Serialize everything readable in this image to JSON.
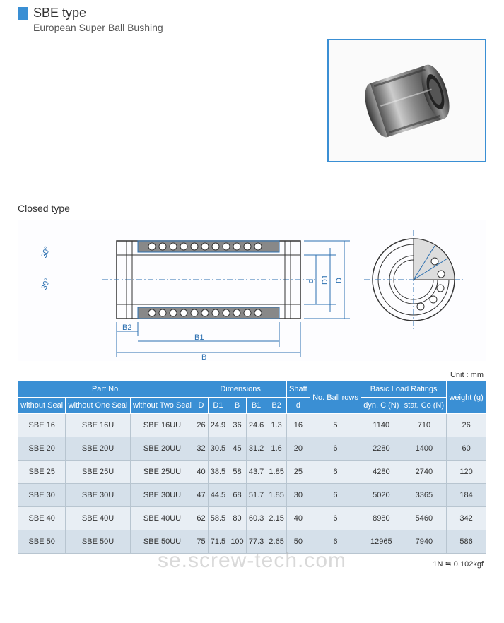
{
  "header": {
    "title": "SBE type",
    "subtitle": "European Super Ball Bushing",
    "section": "Closed type",
    "unit": "Unit : mm",
    "footer": "1N ≒ 0.102kgf",
    "watermark": "se.screw-tech.com"
  },
  "colors": {
    "accent": "#3a8fd4",
    "row_odd": "#e8eef4",
    "row_even": "#d5e0ea",
    "border": "#b8c5d0"
  },
  "drawing": {
    "dims": [
      "30°",
      "30°",
      "B2",
      "B1",
      "B",
      "d",
      "D1",
      "D"
    ],
    "stroke": "#2b6fb0",
    "hatch": "#555"
  },
  "table": {
    "header_groups": [
      {
        "label": "Part No.",
        "span": 3
      },
      {
        "label": "Dimensions",
        "span": 5
      },
      {
        "label": "Shaft",
        "span": 1
      },
      {
        "label": "No. Ball rows",
        "span": 1,
        "rowspan": 2
      },
      {
        "label": "Basic Load Ratings",
        "span": 2
      },
      {
        "label": "weight (g)",
        "span": 1,
        "rowspan": 2
      }
    ],
    "sub_headers": [
      "without Seal",
      "without One Seal",
      "without Two Seal",
      "D",
      "D1",
      "B",
      "B1",
      "B2",
      "d",
      "dyn. C (N)",
      "stat. Co (N)"
    ],
    "rows": [
      [
        "SBE 16",
        "SBE 16U",
        "SBE 16UU",
        "26",
        "24.9",
        "36",
        "24.6",
        "1.3",
        "16",
        "5",
        "1140",
        "710",
        "26"
      ],
      [
        "SBE 20",
        "SBE 20U",
        "SBE 20UU",
        "32",
        "30.5",
        "45",
        "31.2",
        "1.6",
        "20",
        "6",
        "2280",
        "1400",
        "60"
      ],
      [
        "SBE 25",
        "SBE 25U",
        "SBE 25UU",
        "40",
        "38.5",
        "58",
        "43.7",
        "1.85",
        "25",
        "6",
        "4280",
        "2740",
        "120"
      ],
      [
        "SBE 30",
        "SBE 30U",
        "SBE 30UU",
        "47",
        "44.5",
        "68",
        "51.7",
        "1.85",
        "30",
        "6",
        "5020",
        "3365",
        "184"
      ],
      [
        "SBE 40",
        "SBE 40U",
        "SBE 40UU",
        "62",
        "58.5",
        "80",
        "60.3",
        "2.15",
        "40",
        "6",
        "8980",
        "5460",
        "342"
      ],
      [
        "SBE 50",
        "SBE 50U",
        "SBE 50UU",
        "75",
        "71.5",
        "100",
        "77.3",
        "2.65",
        "50",
        "6",
        "12965",
        "7940",
        "586"
      ]
    ]
  }
}
